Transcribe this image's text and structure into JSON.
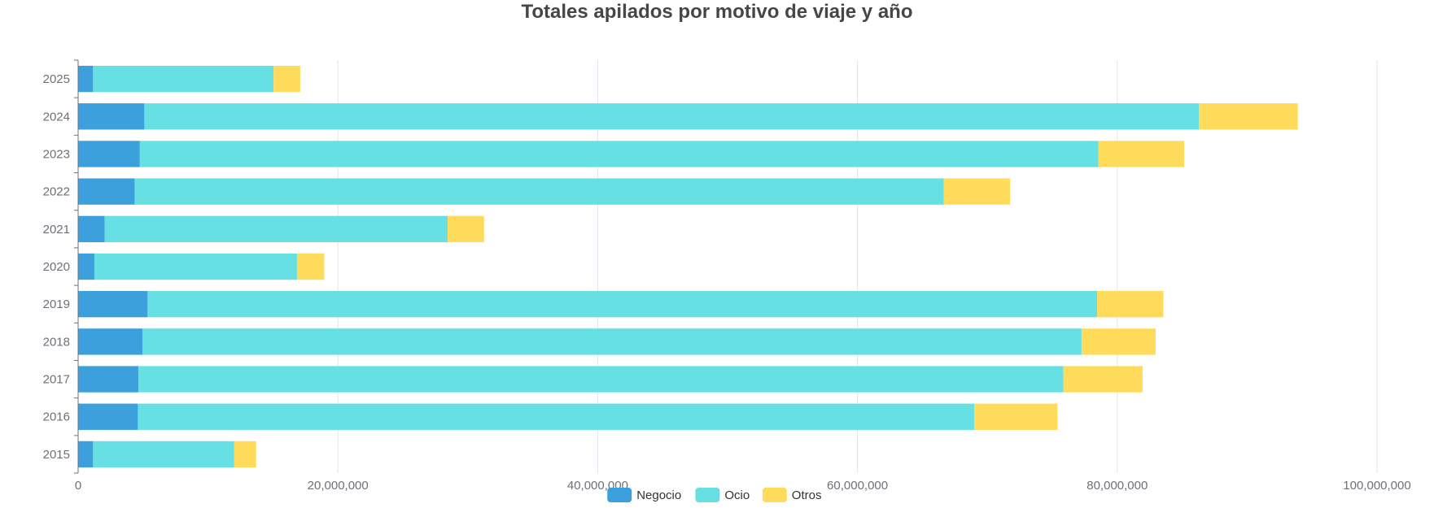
{
  "chart_data": {
    "type": "bar",
    "orientation": "horizontal",
    "stacked": true,
    "title": "Totales apilados por motivo de viaje y año",
    "categories": [
      "2015",
      "2016",
      "2017",
      "2018",
      "2019",
      "2020",
      "2021",
      "2022",
      "2023",
      "2024",
      "2025"
    ],
    "series": [
      {
        "name": "Negocio",
        "color": "#3ba0dc",
        "values": [
          1150000,
          4600000,
          4650000,
          4950000,
          5350000,
          1250000,
          2050000,
          4350000,
          4750000,
          5100000,
          1150000
        ]
      },
      {
        "name": "Ocio",
        "color": "#67e0e3",
        "values": [
          10850000,
          64400000,
          71200000,
          72300000,
          73100000,
          15600000,
          26400000,
          62300000,
          73800000,
          81200000,
          13900000
        ]
      },
      {
        "name": "Otros",
        "color": "#ffdb5c",
        "values": [
          1700000,
          6400000,
          6100000,
          5700000,
          5100000,
          2100000,
          2800000,
          5100000,
          6600000,
          7600000,
          2050000
        ]
      }
    ],
    "xlim": [
      0,
      100000000
    ],
    "x_ticks": [
      "0",
      "20,000,000",
      "40,000,000",
      "60,000,000",
      "80,000,000",
      "100,000,000"
    ],
    "xlabel": "",
    "ylabel": "",
    "grid": true,
    "legend_position": "bottom-center"
  }
}
